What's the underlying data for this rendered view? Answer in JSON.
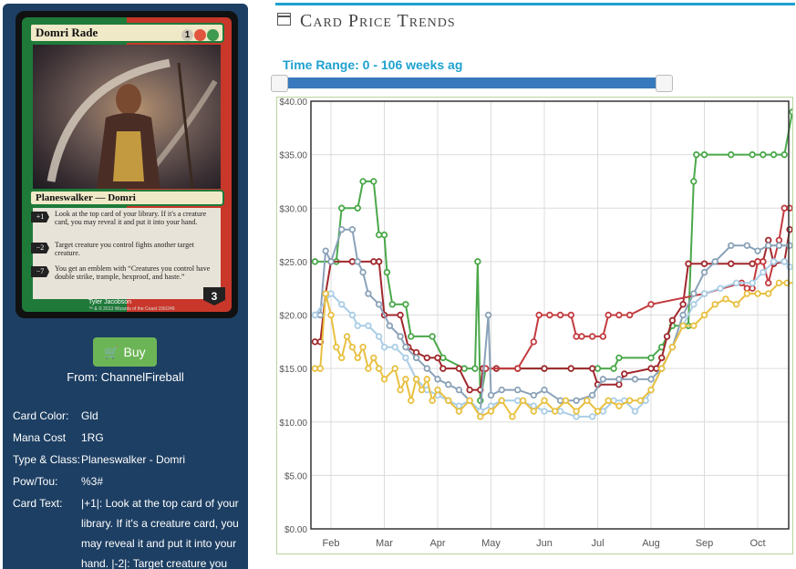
{
  "card": {
    "name": "Domri Rade",
    "mana_symbols": [
      "1",
      "R",
      "G"
    ],
    "type_line": "Planeswalker — Domri",
    "abilities": [
      {
        "cost": "+1",
        "text": "Look at the top card of your library. If it's a creature card, you may reveal it and put it into your hand."
      },
      {
        "cost": "−2",
        "text": "Target creature you control fights another target creature."
      },
      {
        "cost": "−7",
        "text": "You get an emblem with “Creatures you control have double strike, trample, hexproof, and haste.”"
      }
    ],
    "loyalty": "3",
    "artist": "Tyler Jacobson",
    "copyright": "™ & © 2013 Wizards of the Coast 156/249"
  },
  "buy_button": {
    "label": "Buy",
    "icon": "cart-icon"
  },
  "store": "From: ChannelFireball",
  "details": [
    {
      "key": "Card Color:",
      "value": "Gld"
    },
    {
      "key": "Mana Cost",
      "value": "1RG"
    },
    {
      "key": "Type & Class:",
      "value": "Planeswalker - Domri"
    },
    {
      "key": "Pow/Tou:",
      "value": "%3#"
    },
    {
      "key": "Card Text:",
      "value": "|+1|: Look at the top card of your library. If it's a creature card, you may reveal it and put it into your hand. |-2|: Target creature you"
    }
  ],
  "header": {
    "title": "Card Price Trends",
    "icon": "calendar-icon"
  },
  "range": {
    "label": "Time Range: 0 - 106 weeks ag",
    "min": 0,
    "max": 106
  },
  "colors": {
    "green": "#4aa84a",
    "darkred": "#a0282d",
    "red": "#c23b3f",
    "steel": "#8aa2b8",
    "lightblue": "#a9cde6",
    "yellow": "#e8c040",
    "accent": "#1ea1cf",
    "sidebar": "#1d3f63"
  },
  "chart_data": {
    "type": "line",
    "x_ticks": [
      "Feb",
      "Mar",
      "Apr",
      "May",
      "Jun",
      "Jul",
      "Aug",
      "Sep",
      "Oct"
    ],
    "x_range": [
      0,
      9
    ],
    "y_ticks": [
      "$0.00",
      "$5.00",
      "$10.00",
      "$15.00",
      "$20.00",
      "$25.00",
      "$30.00",
      "$35.00",
      "$40.00"
    ],
    "ylim": [
      0,
      40
    ],
    "grid": true,
    "series": [
      {
        "color": "green",
        "points": [
          [
            -0.3,
            25
          ],
          [
            0.1,
            25
          ],
          [
            0.2,
            30
          ],
          [
            0.5,
            30
          ],
          [
            0.6,
            32.5
          ],
          [
            0.8,
            32.5
          ],
          [
            0.9,
            27.5
          ],
          [
            1.0,
            27.5
          ],
          [
            1.05,
            24
          ],
          [
            1.15,
            21
          ],
          [
            1.4,
            21
          ],
          [
            1.5,
            18
          ],
          [
            1.9,
            18
          ],
          [
            2.1,
            16
          ],
          [
            2.5,
            15
          ],
          [
            2.7,
            15
          ],
          [
            2.75,
            25
          ],
          [
            2.8,
            12
          ],
          [
            2.9,
            15
          ],
          [
            3.5,
            15
          ],
          [
            4.0,
            15
          ],
          [
            4.5,
            15
          ],
          [
            5.0,
            15
          ],
          [
            5.3,
            15
          ],
          [
            5.4,
            16
          ],
          [
            6.0,
            16
          ],
          [
            6.2,
            17
          ],
          [
            6.4,
            19
          ],
          [
            6.7,
            19
          ],
          [
            6.8,
            32.5
          ],
          [
            6.85,
            35
          ],
          [
            7.0,
            35
          ],
          [
            7.5,
            35
          ],
          [
            7.9,
            35
          ],
          [
            8.1,
            35
          ],
          [
            8.3,
            35
          ],
          [
            8.5,
            35
          ],
          [
            8.65,
            39
          ],
          [
            8.75,
            39
          ]
        ]
      },
      {
        "color": "darkred",
        "points": [
          [
            -0.3,
            17.5
          ],
          [
            -0.2,
            17.5
          ],
          [
            -0.1,
            22
          ],
          [
            0.0,
            25
          ],
          [
            0.4,
            25
          ],
          [
            0.8,
            25
          ],
          [
            0.9,
            25
          ],
          [
            1.0,
            20
          ],
          [
            1.3,
            20
          ],
          [
            1.45,
            17
          ],
          [
            1.6,
            16.5
          ],
          [
            1.8,
            16
          ],
          [
            2.0,
            16
          ],
          [
            2.1,
            15
          ],
          [
            2.4,
            15
          ],
          [
            2.6,
            13
          ],
          [
            2.8,
            13
          ],
          [
            2.85,
            15
          ],
          [
            3.1,
            15
          ],
          [
            3.5,
            15
          ],
          [
            4.0,
            15
          ],
          [
            4.5,
            15
          ],
          [
            4.9,
            15
          ],
          [
            5.0,
            13.5
          ],
          [
            5.4,
            13.5
          ],
          [
            5.5,
            14.5
          ],
          [
            6.0,
            15
          ],
          [
            6.1,
            15
          ],
          [
            6.2,
            16
          ],
          [
            6.3,
            18
          ],
          [
            6.4,
            19.5
          ],
          [
            6.6,
            21
          ],
          [
            6.7,
            24.8
          ],
          [
            7.0,
            24.8
          ],
          [
            7.5,
            24.8
          ],
          [
            7.9,
            24.8
          ],
          [
            8.0,
            25
          ],
          [
            8.1,
            25
          ],
          [
            8.2,
            27
          ],
          [
            8.3,
            24.8
          ],
          [
            8.5,
            25
          ],
          [
            8.6,
            28
          ],
          [
            8.75,
            28
          ]
        ]
      },
      {
        "color": "red",
        "points": [
          [
            2.9,
            15
          ],
          [
            3.5,
            15
          ],
          [
            3.8,
            17.5
          ],
          [
            3.9,
            20
          ],
          [
            4.1,
            20
          ],
          [
            4.3,
            20
          ],
          [
            4.5,
            20
          ],
          [
            4.6,
            18
          ],
          [
            4.7,
            18
          ],
          [
            4.9,
            18
          ],
          [
            5.1,
            18
          ],
          [
            5.2,
            20
          ],
          [
            5.4,
            20
          ],
          [
            5.6,
            20
          ],
          [
            6.0,
            21
          ],
          [
            7.0,
            22
          ],
          [
            7.7,
            23
          ],
          [
            7.8,
            22.5
          ],
          [
            7.9,
            22.5
          ],
          [
            8.0,
            25
          ],
          [
            8.1,
            25
          ],
          [
            8.2,
            23
          ],
          [
            8.4,
            27
          ],
          [
            8.5,
            30
          ],
          [
            8.6,
            30
          ],
          [
            8.75,
            30
          ]
        ]
      },
      {
        "color": "steel",
        "points": [
          [
            -0.3,
            20
          ],
          [
            -0.2,
            20
          ],
          [
            -0.1,
            26
          ],
          [
            0.0,
            25
          ],
          [
            0.2,
            28
          ],
          [
            0.4,
            28
          ],
          [
            0.5,
            25
          ],
          [
            0.6,
            24
          ],
          [
            0.7,
            22
          ],
          [
            0.9,
            21
          ],
          [
            1.1,
            19
          ],
          [
            1.3,
            18
          ],
          [
            1.4,
            17
          ],
          [
            1.6,
            16
          ],
          [
            1.8,
            15
          ],
          [
            2.0,
            14
          ],
          [
            2.2,
            13.5
          ],
          [
            2.4,
            13
          ],
          [
            2.6,
            12
          ],
          [
            2.8,
            11
          ],
          [
            2.95,
            20
          ],
          [
            3.0,
            12.5
          ],
          [
            3.2,
            13
          ],
          [
            3.5,
            13
          ],
          [
            3.8,
            12.5
          ],
          [
            4.0,
            13
          ],
          [
            4.3,
            12
          ],
          [
            4.6,
            12
          ],
          [
            4.9,
            12.5
          ],
          [
            5.1,
            14
          ],
          [
            5.4,
            14
          ],
          [
            5.7,
            14
          ],
          [
            6.0,
            14
          ],
          [
            6.2,
            15
          ],
          [
            6.4,
            17
          ],
          [
            6.6,
            20
          ],
          [
            6.8,
            22
          ],
          [
            7.0,
            24
          ],
          [
            7.2,
            25
          ],
          [
            7.5,
            26.5
          ],
          [
            7.8,
            26.5
          ],
          [
            8.0,
            26
          ],
          [
            8.2,
            26.5
          ],
          [
            8.4,
            26.5
          ],
          [
            8.6,
            26.5
          ],
          [
            8.75,
            26.5
          ]
        ]
      },
      {
        "color": "lightblue",
        "points": [
          [
            -0.3,
            20
          ],
          [
            0.0,
            22
          ],
          [
            0.2,
            21
          ],
          [
            0.4,
            20
          ],
          [
            0.5,
            19
          ],
          [
            0.7,
            19
          ],
          [
            0.9,
            18
          ],
          [
            1.0,
            17
          ],
          [
            1.2,
            17
          ],
          [
            1.4,
            16
          ],
          [
            1.6,
            14
          ],
          [
            1.8,
            13
          ],
          [
            2.0,
            12.5
          ],
          [
            2.2,
            12
          ],
          [
            2.4,
            11.5
          ],
          [
            2.6,
            12
          ],
          [
            2.8,
            11
          ],
          [
            3.0,
            11.5
          ],
          [
            3.2,
            12
          ],
          [
            3.5,
            12
          ],
          [
            3.8,
            11.5
          ],
          [
            4.0,
            11
          ],
          [
            4.3,
            11
          ],
          [
            4.6,
            10.5
          ],
          [
            4.9,
            10.5
          ],
          [
            5.1,
            11
          ],
          [
            5.3,
            12
          ],
          [
            5.5,
            12
          ],
          [
            5.7,
            11
          ],
          [
            5.9,
            12
          ],
          [
            6.0,
            13
          ],
          [
            6.2,
            15
          ],
          [
            6.4,
            17
          ],
          [
            6.6,
            19
          ],
          [
            6.8,
            21
          ],
          [
            7.0,
            22
          ],
          [
            7.3,
            22.5
          ],
          [
            7.6,
            23
          ],
          [
            7.9,
            23
          ],
          [
            8.1,
            24
          ],
          [
            8.3,
            25
          ],
          [
            8.5,
            25
          ],
          [
            8.6,
            24.5
          ],
          [
            8.75,
            24.5
          ]
        ]
      },
      {
        "color": "yellow",
        "points": [
          [
            -0.3,
            15
          ],
          [
            -0.2,
            15
          ],
          [
            -0.1,
            22
          ],
          [
            0.0,
            20
          ],
          [
            0.1,
            17
          ],
          [
            0.2,
            16
          ],
          [
            0.3,
            18
          ],
          [
            0.4,
            17
          ],
          [
            0.5,
            16
          ],
          [
            0.6,
            17
          ],
          [
            0.7,
            15
          ],
          [
            0.8,
            16
          ],
          [
            0.9,
            15
          ],
          [
            1.0,
            14
          ],
          [
            1.2,
            15
          ],
          [
            1.3,
            13
          ],
          [
            1.4,
            14
          ],
          [
            1.5,
            12
          ],
          [
            1.6,
            14
          ],
          [
            1.7,
            13
          ],
          [
            1.8,
            14
          ],
          [
            1.9,
            12
          ],
          [
            2.0,
            13
          ],
          [
            2.2,
            12
          ],
          [
            2.4,
            11
          ],
          [
            2.6,
            12
          ],
          [
            2.8,
            10.5
          ],
          [
            3.0,
            11
          ],
          [
            3.2,
            12
          ],
          [
            3.4,
            10.5
          ],
          [
            3.6,
            12
          ],
          [
            3.8,
            11
          ],
          [
            4.0,
            12
          ],
          [
            4.2,
            11
          ],
          [
            4.4,
            12
          ],
          [
            4.6,
            11
          ],
          [
            4.8,
            12
          ],
          [
            5.0,
            11
          ],
          [
            5.2,
            12
          ],
          [
            5.4,
            11.5
          ],
          [
            5.6,
            12
          ],
          [
            5.8,
            12
          ],
          [
            6.0,
            13
          ],
          [
            6.2,
            15
          ],
          [
            6.4,
            17
          ],
          [
            6.6,
            19
          ],
          [
            6.8,
            19
          ],
          [
            7.0,
            20
          ],
          [
            7.2,
            21
          ],
          [
            7.4,
            21.5
          ],
          [
            7.6,
            21
          ],
          [
            7.8,
            22
          ],
          [
            8.0,
            22
          ],
          [
            8.2,
            22
          ],
          [
            8.4,
            23
          ],
          [
            8.55,
            23
          ],
          [
            8.75,
            23
          ]
        ]
      }
    ]
  }
}
